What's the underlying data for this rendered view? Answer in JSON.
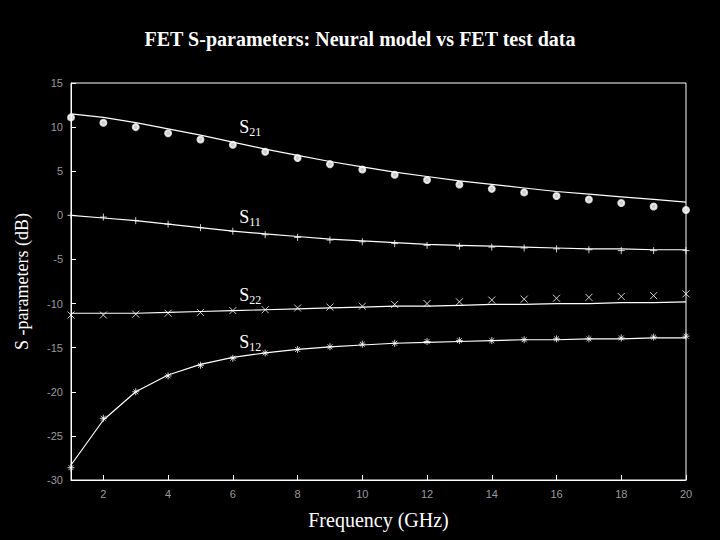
{
  "chart_data": {
    "type": "line",
    "title": "FET S-parameters: Neural model vs FET test data",
    "x_label": "Frequency (GHz)",
    "y_label": "S -parameters (dB)",
    "x": [
      1,
      2,
      3,
      4,
      5,
      6,
      7,
      8,
      9,
      10,
      11,
      12,
      13,
      14,
      15,
      16,
      17,
      18,
      19,
      20
    ],
    "xlim": [
      1,
      20
    ],
    "xticks": [
      2,
      4,
      6,
      8,
      10,
      12,
      14,
      16,
      18,
      20
    ],
    "ylim": [
      -30,
      15
    ],
    "yticks": [
      -30,
      -25,
      -20,
      -15,
      -10,
      -5,
      0,
      5,
      10,
      15
    ],
    "grid": false,
    "series": [
      {
        "name": "S21",
        "color": "#ffffff",
        "marker": "circle",
        "values": [
          11.1,
          10.5,
          10.0,
          9.3,
          8.6,
          8.0,
          7.2,
          6.5,
          5.8,
          5.2,
          4.6,
          4.0,
          3.5,
          3.0,
          2.6,
          2.2,
          1.8,
          1.4,
          1.0,
          0.6
        ],
        "model": [
          11.5,
          11.1,
          10.5,
          9.8,
          9.1,
          8.3,
          7.5,
          6.8,
          6.1,
          5.5,
          4.9,
          4.4,
          3.9,
          3.5,
          3.1,
          2.7,
          2.4,
          2.1,
          1.8,
          1.5
        ]
      },
      {
        "name": "S11",
        "color": "#ffffff",
        "marker": "plus",
        "values": [
          0.0,
          -0.2,
          -0.6,
          -1.0,
          -1.4,
          -1.8,
          -2.2,
          -2.5,
          -2.8,
          -3.0,
          -3.2,
          -3.4,
          -3.5,
          -3.6,
          -3.7,
          -3.8,
          -3.9,
          -4.0,
          -4.0,
          -4.0
        ],
        "model": [
          0.0,
          -0.3,
          -0.6,
          -1.0,
          -1.4,
          -1.8,
          -2.1,
          -2.4,
          -2.7,
          -2.9,
          -3.1,
          -3.3,
          -3.4,
          -3.5,
          -3.6,
          -3.7,
          -3.8,
          -3.8,
          -3.9,
          -3.9
        ]
      },
      {
        "name": "S22",
        "color": "#ffffff",
        "marker": "x",
        "values": [
          -11.3,
          -11.3,
          -11.2,
          -11.1,
          -11.0,
          -10.8,
          -10.7,
          -10.5,
          -10.4,
          -10.3,
          -10.1,
          -10.0,
          -9.8,
          -9.6,
          -9.5,
          -9.4,
          -9.3,
          -9.2,
          -9.1,
          -8.9
        ],
        "model": [
          -11.1,
          -11.1,
          -11.1,
          -11.0,
          -10.9,
          -10.8,
          -10.7,
          -10.6,
          -10.5,
          -10.4,
          -10.3,
          -10.3,
          -10.2,
          -10.1,
          -10.1,
          -10.0,
          -10.0,
          -9.9,
          -9.9,
          -9.8
        ]
      },
      {
        "name": "S12",
        "color": "#ffffff",
        "marker": "asterisk",
        "values": [
          -28.6,
          -23.0,
          -20.0,
          -18.2,
          -17.0,
          -16.2,
          -15.6,
          -15.2,
          -14.9,
          -14.6,
          -14.5,
          -14.3,
          -14.2,
          -14.2,
          -14.1,
          -14.0,
          -14.0,
          -13.9,
          -13.8,
          -13.7
        ],
        "model": [
          -28.3,
          -23.2,
          -20.0,
          -18.1,
          -16.9,
          -16.1,
          -15.6,
          -15.2,
          -14.9,
          -14.7,
          -14.5,
          -14.4,
          -14.3,
          -14.2,
          -14.1,
          -14.1,
          -14.0,
          -14.0,
          -13.9,
          -13.9
        ]
      }
    ],
    "annotations": [
      {
        "text": "S21",
        "x": 6.2,
        "y": 10.0
      },
      {
        "text": "S11",
        "x": 6.2,
        "y": -0.2
      },
      {
        "text": "S22",
        "x": 6.2,
        "y": -9.0
      },
      {
        "text": "S12",
        "x": 6.2,
        "y": -14.4
      }
    ]
  }
}
